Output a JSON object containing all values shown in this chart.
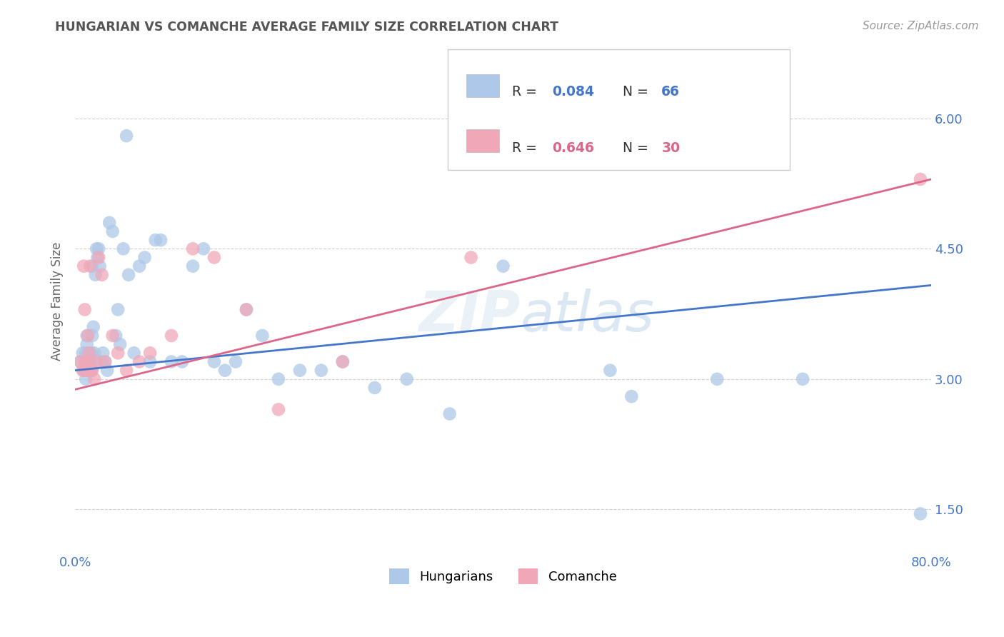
{
  "title": "HUNGARIAN VS COMANCHE AVERAGE FAMILY SIZE CORRELATION CHART",
  "source": "Source: ZipAtlas.com",
  "ylabel": "Average Family Size",
  "xlim": [
    0.0,
    0.8
  ],
  "ylim": [
    1.0,
    6.8
  ],
  "yticks": [
    1.5,
    3.0,
    4.5,
    6.0
  ],
  "xticks": [
    0.0,
    0.1,
    0.2,
    0.3,
    0.4,
    0.5,
    0.6,
    0.7,
    0.8
  ],
  "background_color": "#ffffff",
  "grid_color": "#cccccc",
  "hungarian_color": "#adc8e8",
  "comanche_color": "#f0a8b8",
  "hungarian_line_color": "#4477cc",
  "comanche_line_color": "#dd6688",
  "legend_label1": "Hungarians",
  "legend_label2": "Comanche",
  "title_color": "#555555",
  "axis_color": "#4477cc",
  "comanche_r_color": "#dd6688",
  "hungarian_R": 0.084,
  "hungarian_N": 66,
  "comanche_R": 0.646,
  "comanche_N": 30,
  "hungarian_line_x0": 0.0,
  "hungarian_line_y0": 3.1,
  "hungarian_line_x1": 0.8,
  "hungarian_line_y1": 4.08,
  "comanche_line_x0": 0.0,
  "comanche_line_y0": 2.88,
  "comanche_line_x1": 0.8,
  "comanche_line_y1": 5.3,
  "hungarian_x": [
    0.005,
    0.007,
    0.008,
    0.009,
    0.01,
    0.01,
    0.01,
    0.011,
    0.011,
    0.012,
    0.012,
    0.013,
    0.013,
    0.014,
    0.014,
    0.015,
    0.015,
    0.016,
    0.016,
    0.017,
    0.018,
    0.019,
    0.02,
    0.021,
    0.022,
    0.023,
    0.025,
    0.026,
    0.028,
    0.03,
    0.032,
    0.035,
    0.038,
    0.04,
    0.042,
    0.045,
    0.048,
    0.05,
    0.055,
    0.06,
    0.065,
    0.07,
    0.075,
    0.08,
    0.09,
    0.1,
    0.11,
    0.12,
    0.13,
    0.14,
    0.15,
    0.16,
    0.175,
    0.19,
    0.21,
    0.23,
    0.25,
    0.28,
    0.31,
    0.35,
    0.4,
    0.5,
    0.52,
    0.6,
    0.68,
    0.79
  ],
  "hungarian_y": [
    3.2,
    3.3,
    3.1,
    3.1,
    3.3,
    3.2,
    3.0,
    3.5,
    3.4,
    3.2,
    3.3,
    3.1,
    3.2,
    3.2,
    3.1,
    3.3,
    3.1,
    3.5,
    4.3,
    3.6,
    3.3,
    4.2,
    4.5,
    4.4,
    4.5,
    4.3,
    3.2,
    3.3,
    3.2,
    3.1,
    4.8,
    4.7,
    3.5,
    3.8,
    3.4,
    4.5,
    5.8,
    4.2,
    3.3,
    4.3,
    4.4,
    3.2,
    4.6,
    4.6,
    3.2,
    3.2,
    4.3,
    4.5,
    3.2,
    3.1,
    3.2,
    3.8,
    3.5,
    3.0,
    3.1,
    3.1,
    3.2,
    2.9,
    3.0,
    2.6,
    4.3,
    3.1,
    2.8,
    3.0,
    3.0,
    1.45
  ],
  "comanche_x": [
    0.005,
    0.007,
    0.008,
    0.009,
    0.01,
    0.01,
    0.011,
    0.012,
    0.013,
    0.014,
    0.015,
    0.016,
    0.018,
    0.02,
    0.022,
    0.025,
    0.028,
    0.035,
    0.04,
    0.048,
    0.06,
    0.07,
    0.09,
    0.11,
    0.13,
    0.16,
    0.19,
    0.25,
    0.37,
    0.79
  ],
  "comanche_y": [
    3.2,
    3.1,
    4.3,
    3.8,
    3.2,
    3.1,
    3.2,
    3.5,
    3.3,
    4.3,
    3.1,
    3.1,
    3.0,
    3.2,
    4.4,
    4.2,
    3.2,
    3.5,
    3.3,
    3.1,
    3.2,
    3.3,
    3.5,
    4.5,
    4.4,
    3.8,
    2.65,
    3.2,
    4.4,
    5.3
  ]
}
